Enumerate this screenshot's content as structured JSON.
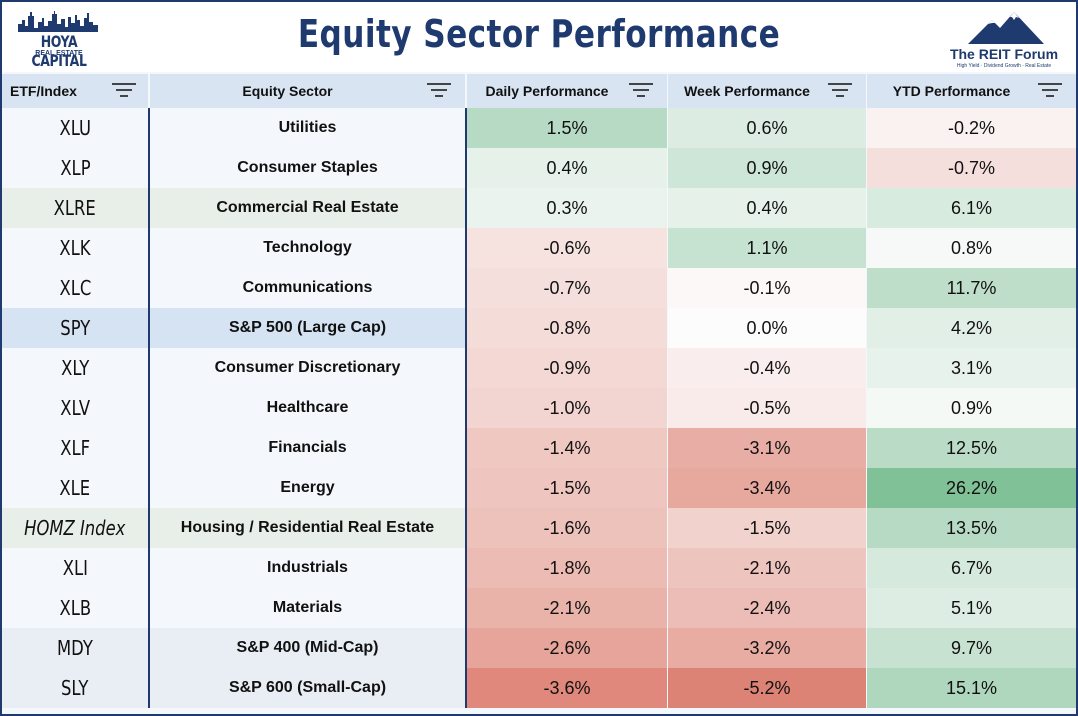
{
  "title": "Equity Sector Performance",
  "logo_left": {
    "name": "HOYA CAPITAL",
    "sub": "REAL ESTATE"
  },
  "logo_right": {
    "name": "The REIT Forum",
    "tagline": "High Yield · Dividend Growth · Real Estate"
  },
  "columns": [
    "ETF/Index",
    "Equity Sector",
    "Daily Performance",
    "Week Performance",
    "YTD Performance"
  ],
  "colors": {
    "brand": "#1f3a6e",
    "header_bg": "#d9e4f2",
    "positive": "#7dbf95",
    "negative": "#dc7d6f"
  },
  "rows": [
    {
      "ticker": "XLU",
      "sector": "Utilities",
      "daily": "1.5%",
      "week": "0.6%",
      "ytd": "-0.2%"
    },
    {
      "ticker": "XLP",
      "sector": "Consumer Staples",
      "daily": "0.4%",
      "week": "0.9%",
      "ytd": "-0.7%"
    },
    {
      "ticker": "XLRE",
      "sector": "Commercial Real Estate",
      "daily": "0.3%",
      "week": "0.4%",
      "ytd": "6.1%"
    },
    {
      "ticker": "XLK",
      "sector": "Technology",
      "daily": "-0.6%",
      "week": "1.1%",
      "ytd": "0.8%"
    },
    {
      "ticker": "XLC",
      "sector": "Communications",
      "daily": "-0.7%",
      "week": "-0.1%",
      "ytd": "11.7%"
    },
    {
      "ticker": "SPY",
      "sector": "S&P 500 (Large Cap)",
      "daily": "-0.8%",
      "week": "0.0%",
      "ytd": "4.2%"
    },
    {
      "ticker": "XLY",
      "sector": "Consumer Discretionary",
      "daily": "-0.9%",
      "week": "-0.4%",
      "ytd": "3.1%"
    },
    {
      "ticker": "XLV",
      "sector": "Healthcare",
      "daily": "-1.0%",
      "week": "-0.5%",
      "ytd": "0.9%"
    },
    {
      "ticker": "XLF",
      "sector": "Financials",
      "daily": "-1.4%",
      "week": "-3.1%",
      "ytd": "12.5%"
    },
    {
      "ticker": "XLE",
      "sector": "Energy",
      "daily": "-1.5%",
      "week": "-3.4%",
      "ytd": "26.2%"
    },
    {
      "ticker": "HOMZ Index",
      "sector": "Housing / Residential Real Estate",
      "daily": "-1.6%",
      "week": "-1.5%",
      "ytd": "13.5%"
    },
    {
      "ticker": "XLI",
      "sector": "Industrials",
      "daily": "-1.8%",
      "week": "-2.1%",
      "ytd": "6.7%"
    },
    {
      "ticker": "XLB",
      "sector": "Materials",
      "daily": "-2.1%",
      "week": "-2.4%",
      "ytd": "5.1%"
    },
    {
      "ticker": "MDY",
      "sector": "S&P 400 (Mid-Cap)",
      "daily": "-2.6%",
      "week": "-3.2%",
      "ytd": "9.7%"
    },
    {
      "ticker": "SLY",
      "sector": "S&P 600 (Small-Cap)",
      "daily": "-3.6%",
      "week": "-5.2%",
      "ytd": "15.1%"
    }
  ]
}
